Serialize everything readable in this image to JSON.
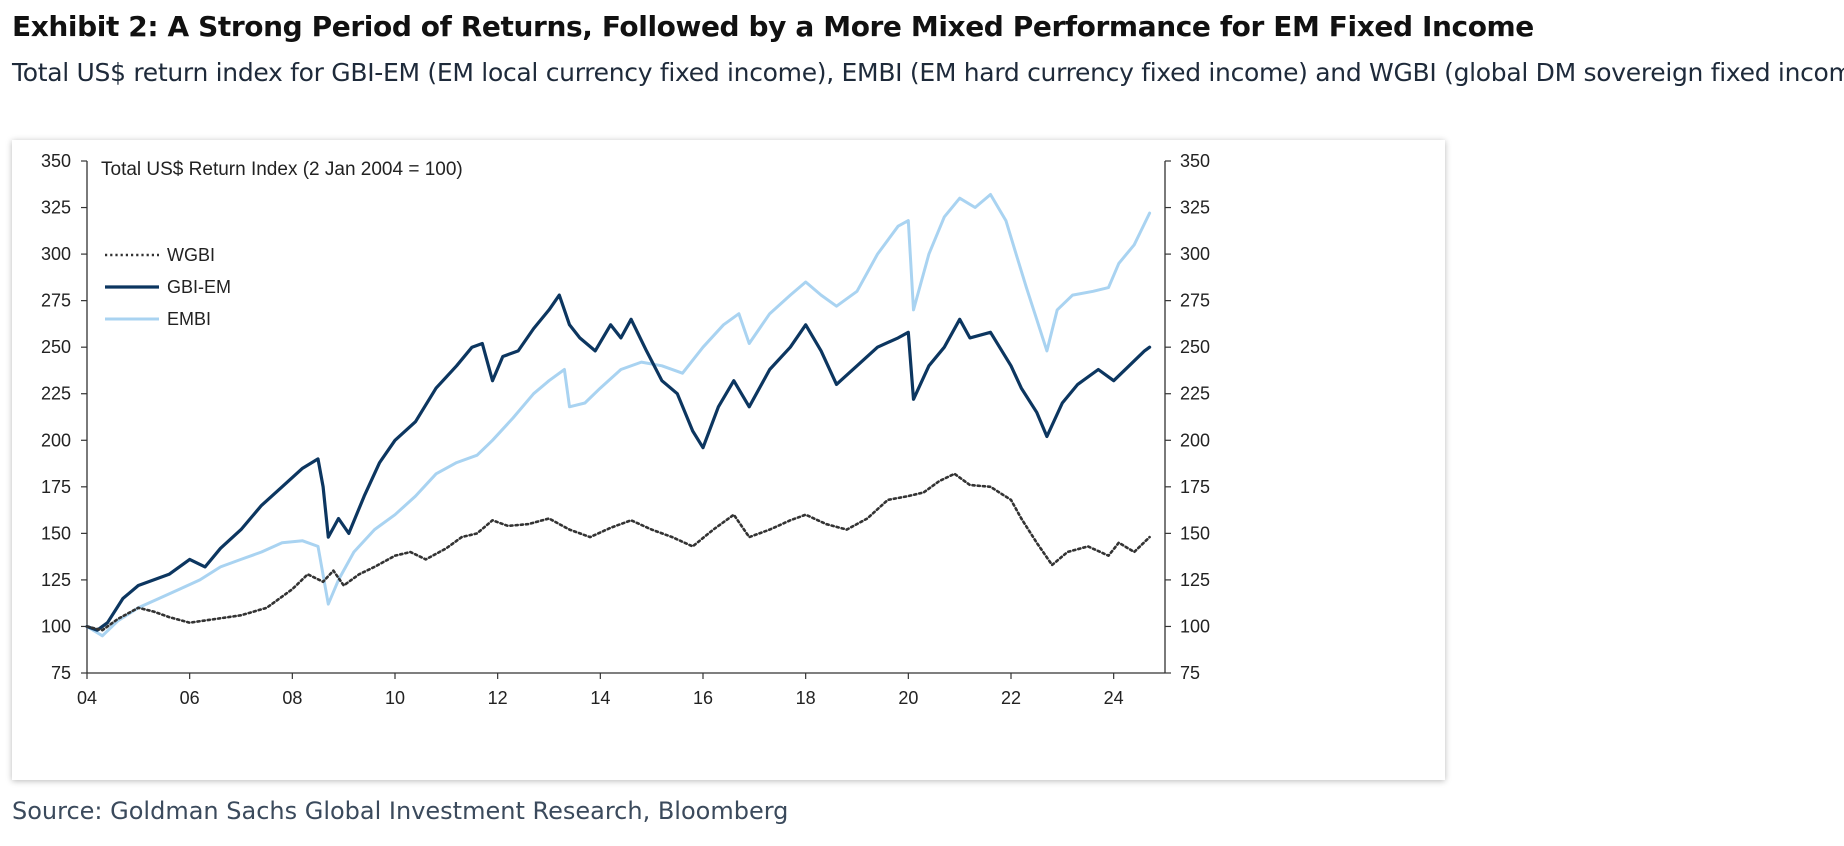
{
  "header": {
    "title": "Exhibit 2: A Strong Period of Returns, Followed by a More Mixed Performance for EM Fixed Income",
    "subtitle": "Total US$ return index for GBI-EM (EM local currency fixed income), EMBI (EM hard currency fixed income) and WGBI (global DM sovereign fixed income)"
  },
  "footer": {
    "source": "Source: Goldman Sachs Global Investment Research, Bloomberg"
  },
  "colors": {
    "wgbi": "#333333",
    "gbi_em": "#0c3660",
    "embi": "#a9d3f1",
    "axis": "#333333"
  },
  "chart_data": {
    "type": "line",
    "title": "Total US$ Return Index (2 Jan 2004 = 100)",
    "xlim": [
      2004,
      2025
    ],
    "ylim": [
      75,
      350
    ],
    "x_ticks": [
      2004,
      2006,
      2008,
      2010,
      2012,
      2014,
      2016,
      2018,
      2020,
      2022,
      2024
    ],
    "x_tick_labels": [
      "04",
      "06",
      "08",
      "10",
      "12",
      "14",
      "16",
      "18",
      "20",
      "22",
      "24"
    ],
    "y_ticks": [
      75,
      100,
      125,
      150,
      175,
      200,
      225,
      250,
      275,
      300,
      325,
      350
    ],
    "y_tick_labels": [
      "75",
      "100",
      "125",
      "150",
      "175",
      "200",
      "225",
      "250",
      "275",
      "300",
      "325",
      "350"
    ],
    "legend_position": "upper-left",
    "grid": false,
    "series": [
      {
        "name": "WGBI",
        "style": "dotted",
        "points": [
          [
            2004.0,
            100
          ],
          [
            2004.3,
            98
          ],
          [
            2004.6,
            104
          ],
          [
            2005.0,
            110
          ],
          [
            2005.3,
            108
          ],
          [
            2005.6,
            105
          ],
          [
            2006.0,
            102
          ],
          [
            2006.5,
            104
          ],
          [
            2007.0,
            106
          ],
          [
            2007.5,
            110
          ],
          [
            2008.0,
            120
          ],
          [
            2008.3,
            128
          ],
          [
            2008.6,
            124
          ],
          [
            2008.8,
            130
          ],
          [
            2009.0,
            122
          ],
          [
            2009.3,
            128
          ],
          [
            2009.6,
            132
          ],
          [
            2010.0,
            138
          ],
          [
            2010.3,
            140
          ],
          [
            2010.6,
            136
          ],
          [
            2011.0,
            142
          ],
          [
            2011.3,
            148
          ],
          [
            2011.6,
            150
          ],
          [
            2011.9,
            157
          ],
          [
            2012.2,
            154
          ],
          [
            2012.6,
            155
          ],
          [
            2013.0,
            158
          ],
          [
            2013.4,
            152
          ],
          [
            2013.8,
            148
          ],
          [
            2014.2,
            153
          ],
          [
            2014.6,
            157
          ],
          [
            2015.0,
            152
          ],
          [
            2015.4,
            148
          ],
          [
            2015.8,
            143
          ],
          [
            2016.2,
            152
          ],
          [
            2016.6,
            160
          ],
          [
            2016.9,
            148
          ],
          [
            2017.3,
            152
          ],
          [
            2017.7,
            157
          ],
          [
            2018.0,
            160
          ],
          [
            2018.4,
            155
          ],
          [
            2018.8,
            152
          ],
          [
            2019.2,
            158
          ],
          [
            2019.6,
            168
          ],
          [
            2020.0,
            170
          ],
          [
            2020.3,
            172
          ],
          [
            2020.6,
            178
          ],
          [
            2020.9,
            182
          ],
          [
            2021.2,
            176
          ],
          [
            2021.6,
            175
          ],
          [
            2022.0,
            168
          ],
          [
            2022.2,
            158
          ],
          [
            2022.5,
            145
          ],
          [
            2022.8,
            133
          ],
          [
            2023.1,
            140
          ],
          [
            2023.5,
            143
          ],
          [
            2023.9,
            138
          ],
          [
            2024.1,
            145
          ],
          [
            2024.4,
            140
          ],
          [
            2024.7,
            148
          ]
        ]
      },
      {
        "name": "GBI-EM",
        "style": "solid",
        "points": [
          [
            2004.0,
            100
          ],
          [
            2004.2,
            98
          ],
          [
            2004.4,
            102
          ],
          [
            2004.7,
            115
          ],
          [
            2005.0,
            122
          ],
          [
            2005.3,
            125
          ],
          [
            2005.6,
            128
          ],
          [
            2006.0,
            136
          ],
          [
            2006.3,
            132
          ],
          [
            2006.6,
            142
          ],
          [
            2007.0,
            152
          ],
          [
            2007.4,
            165
          ],
          [
            2007.8,
            175
          ],
          [
            2008.2,
            185
          ],
          [
            2008.5,
            190
          ],
          [
            2008.6,
            175
          ],
          [
            2008.7,
            148
          ],
          [
            2008.9,
            158
          ],
          [
            2009.1,
            150
          ],
          [
            2009.4,
            170
          ],
          [
            2009.7,
            188
          ],
          [
            2010.0,
            200
          ],
          [
            2010.4,
            210
          ],
          [
            2010.8,
            228
          ],
          [
            2011.2,
            240
          ],
          [
            2011.5,
            250
          ],
          [
            2011.7,
            252
          ],
          [
            2011.9,
            232
          ],
          [
            2012.1,
            245
          ],
          [
            2012.4,
            248
          ],
          [
            2012.7,
            260
          ],
          [
            2013.0,
            270
          ],
          [
            2013.2,
            278
          ],
          [
            2013.4,
            262
          ],
          [
            2013.6,
            255
          ],
          [
            2013.9,
            248
          ],
          [
            2014.2,
            262
          ],
          [
            2014.4,
            255
          ],
          [
            2014.6,
            265
          ],
          [
            2014.9,
            248
          ],
          [
            2015.2,
            232
          ],
          [
            2015.5,
            225
          ],
          [
            2015.8,
            205
          ],
          [
            2016.0,
            196
          ],
          [
            2016.3,
            218
          ],
          [
            2016.6,
            232
          ],
          [
            2016.9,
            218
          ],
          [
            2017.3,
            238
          ],
          [
            2017.7,
            250
          ],
          [
            2018.0,
            262
          ],
          [
            2018.3,
            248
          ],
          [
            2018.6,
            230
          ],
          [
            2019.0,
            240
          ],
          [
            2019.4,
            250
          ],
          [
            2019.8,
            255
          ],
          [
            2020.0,
            258
          ],
          [
            2020.1,
            222
          ],
          [
            2020.4,
            240
          ],
          [
            2020.7,
            250
          ],
          [
            2021.0,
            265
          ],
          [
            2021.2,
            255
          ],
          [
            2021.6,
            258
          ],
          [
            2022.0,
            240
          ],
          [
            2022.2,
            228
          ],
          [
            2022.5,
            215
          ],
          [
            2022.7,
            202
          ],
          [
            2023.0,
            220
          ],
          [
            2023.3,
            230
          ],
          [
            2023.7,
            238
          ],
          [
            2024.0,
            232
          ],
          [
            2024.3,
            240
          ],
          [
            2024.6,
            248
          ],
          [
            2024.7,
            250
          ]
        ]
      },
      {
        "name": "EMBI",
        "style": "solid",
        "points": [
          [
            2004.0,
            100
          ],
          [
            2004.3,
            95
          ],
          [
            2004.6,
            103
          ],
          [
            2005.0,
            110
          ],
          [
            2005.4,
            115
          ],
          [
            2005.8,
            120
          ],
          [
            2006.2,
            125
          ],
          [
            2006.6,
            132
          ],
          [
            2007.0,
            136
          ],
          [
            2007.4,
            140
          ],
          [
            2007.8,
            145
          ],
          [
            2008.2,
            146
          ],
          [
            2008.5,
            143
          ],
          [
            2008.7,
            112
          ],
          [
            2008.9,
            125
          ],
          [
            2009.2,
            140
          ],
          [
            2009.6,
            152
          ],
          [
            2010.0,
            160
          ],
          [
            2010.4,
            170
          ],
          [
            2010.8,
            182
          ],
          [
            2011.2,
            188
          ],
          [
            2011.6,
            192
          ],
          [
            2011.9,
            200
          ],
          [
            2012.3,
            212
          ],
          [
            2012.7,
            225
          ],
          [
            2013.0,
            232
          ],
          [
            2013.3,
            238
          ],
          [
            2013.4,
            218
          ],
          [
            2013.7,
            220
          ],
          [
            2014.0,
            228
          ],
          [
            2014.4,
            238
          ],
          [
            2014.8,
            242
          ],
          [
            2015.2,
            240
          ],
          [
            2015.6,
            236
          ],
          [
            2016.0,
            250
          ],
          [
            2016.4,
            262
          ],
          [
            2016.7,
            268
          ],
          [
            2016.9,
            252
          ],
          [
            2017.3,
            268
          ],
          [
            2017.7,
            278
          ],
          [
            2018.0,
            285
          ],
          [
            2018.3,
            278
          ],
          [
            2018.6,
            272
          ],
          [
            2019.0,
            280
          ],
          [
            2019.4,
            300
          ],
          [
            2019.8,
            315
          ],
          [
            2020.0,
            318
          ],
          [
            2020.1,
            270
          ],
          [
            2020.4,
            300
          ],
          [
            2020.7,
            320
          ],
          [
            2021.0,
            330
          ],
          [
            2021.3,
            325
          ],
          [
            2021.6,
            332
          ],
          [
            2021.9,
            318
          ],
          [
            2022.1,
            300
          ],
          [
            2022.3,
            282
          ],
          [
            2022.5,
            265
          ],
          [
            2022.7,
            248
          ],
          [
            2022.9,
            270
          ],
          [
            2023.2,
            278
          ],
          [
            2023.6,
            280
          ],
          [
            2023.9,
            282
          ],
          [
            2024.1,
            295
          ],
          [
            2024.4,
            305
          ],
          [
            2024.7,
            322
          ]
        ]
      }
    ]
  }
}
